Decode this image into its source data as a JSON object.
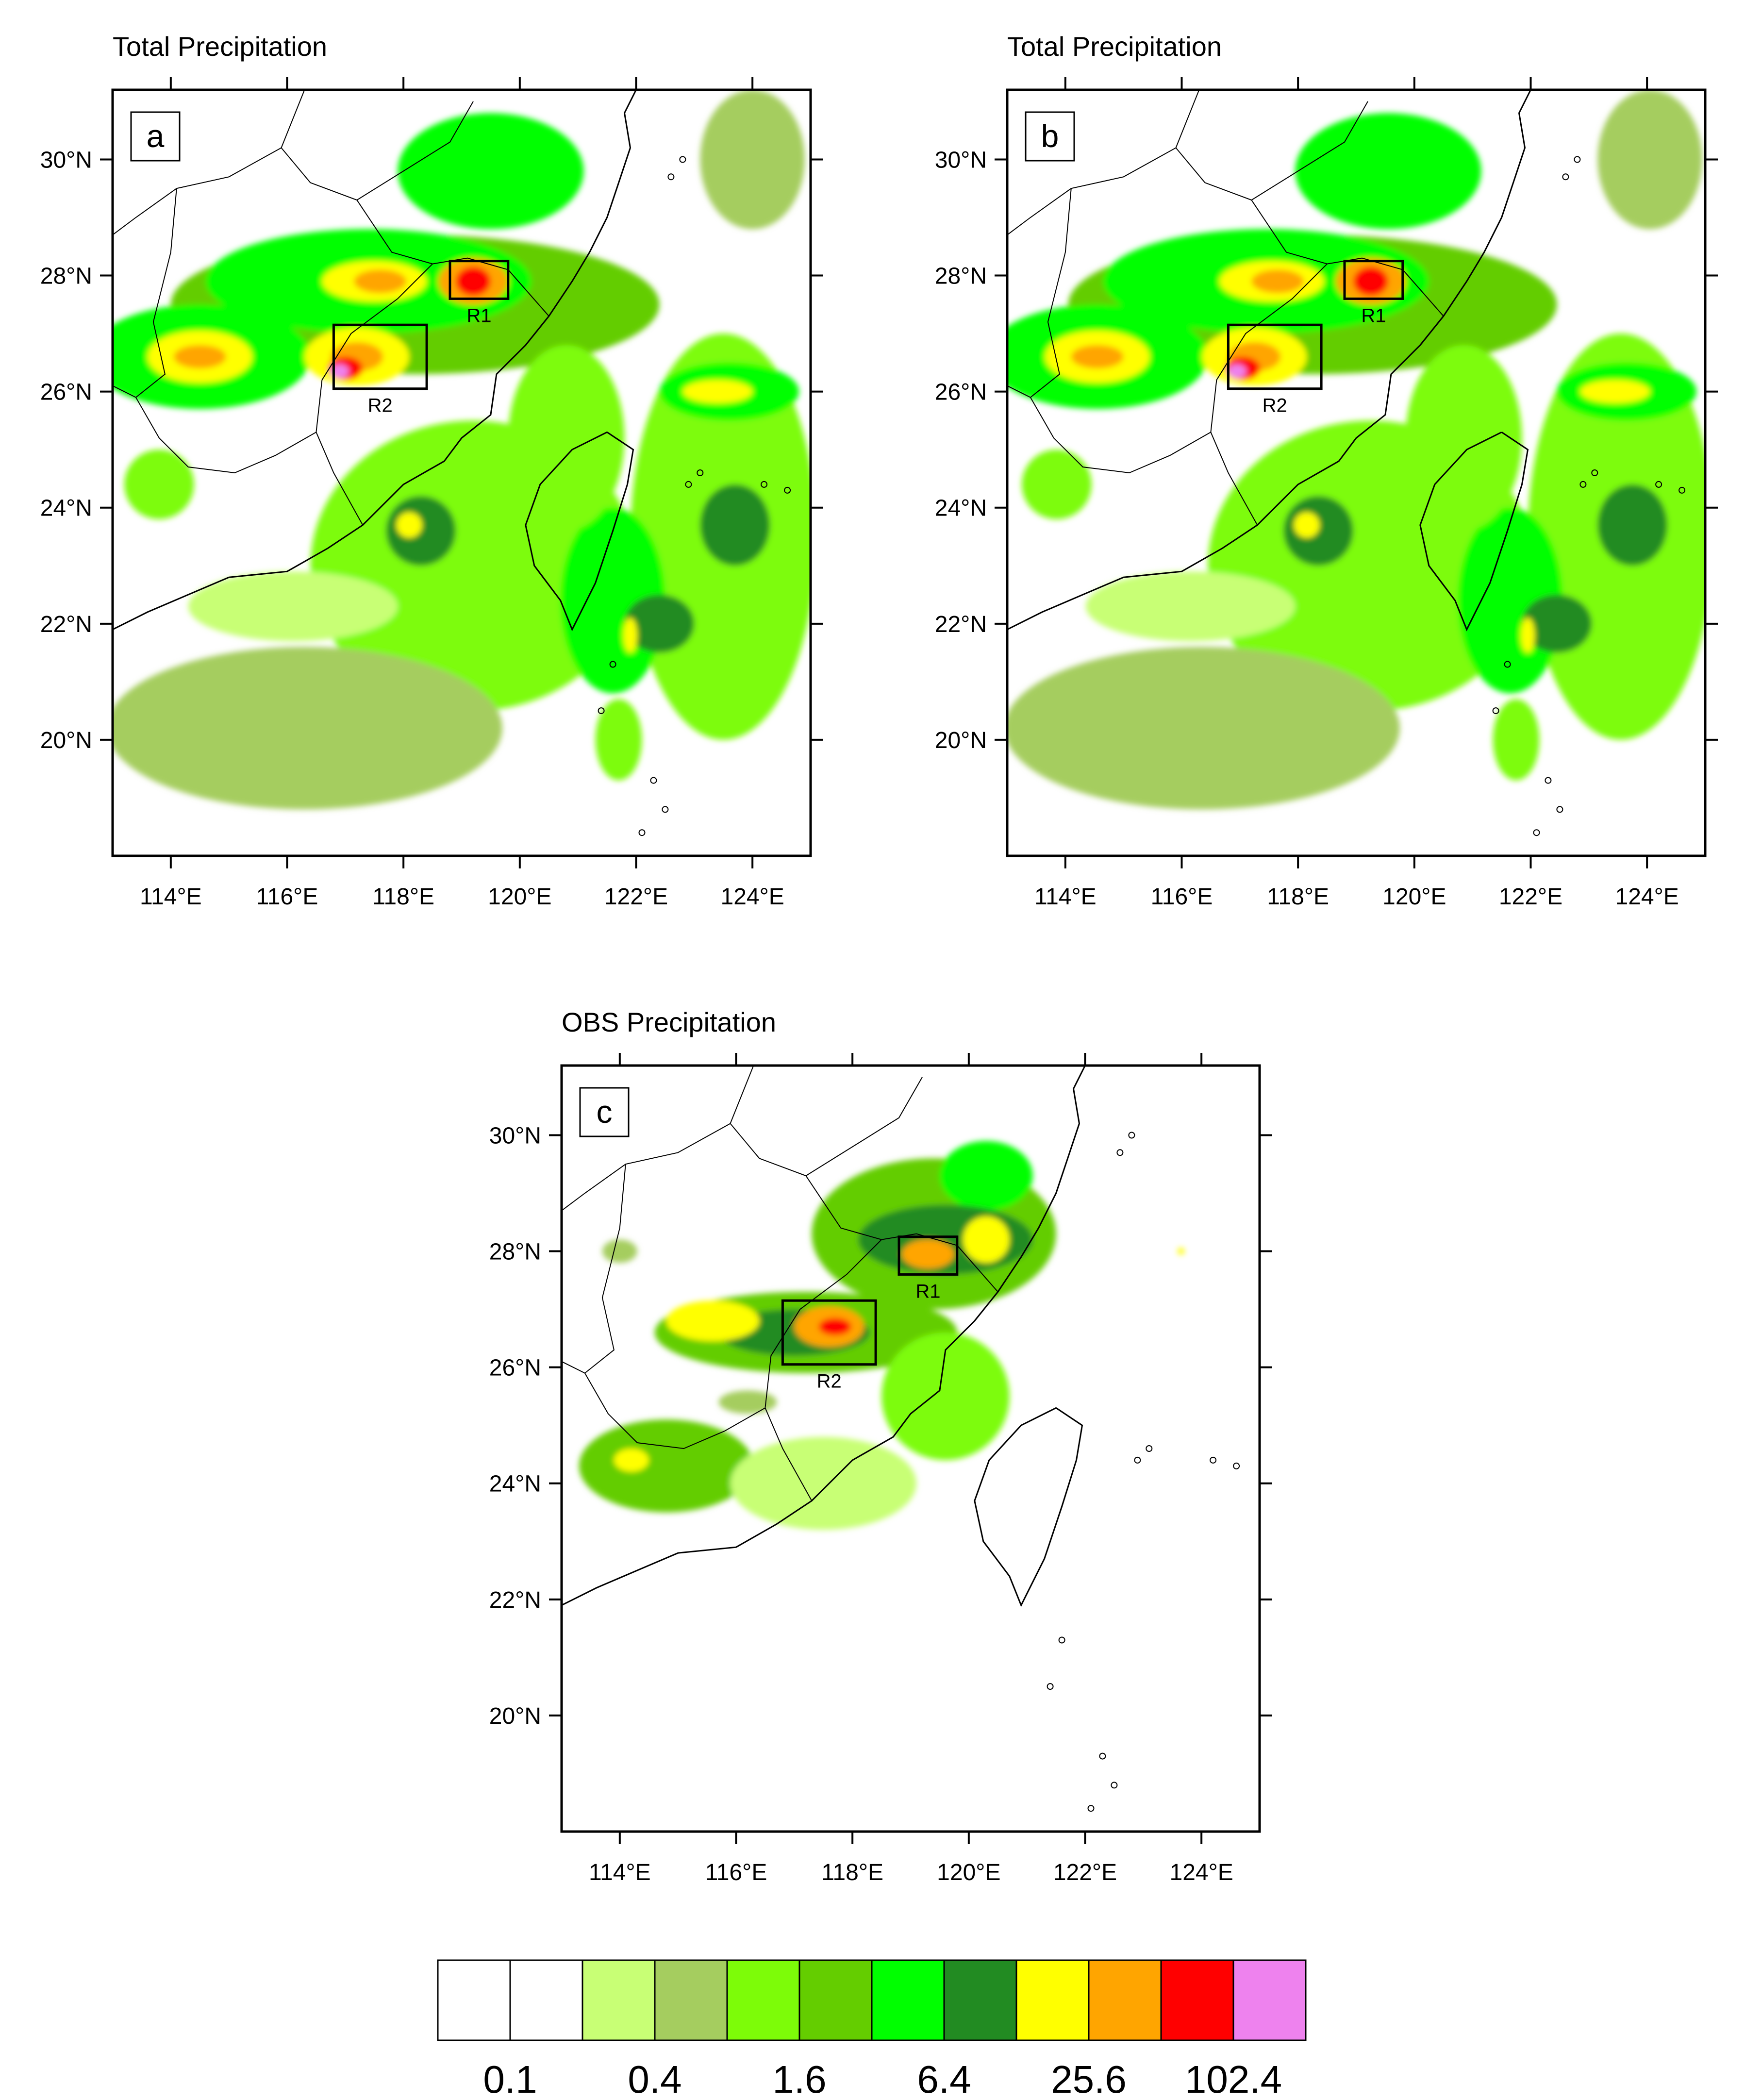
{
  "panels": [
    {
      "id": "a",
      "title": "Total Precipitation",
      "label": "a"
    },
    {
      "id": "b",
      "title": "Total Precipitation",
      "label": "b"
    },
    {
      "id": "c",
      "title": "OBS Precipitation",
      "label": "c"
    }
  ],
  "axes": {
    "lon_ticks": [
      "114°E",
      "116°E",
      "118°E",
      "120°E",
      "122°E",
      "124°E"
    ],
    "lon_values": [
      114,
      116,
      118,
      120,
      122,
      124
    ],
    "lat_ticks": [
      "30°N",
      "28°N",
      "26°N",
      "24°N",
      "22°N",
      "20°N"
    ],
    "lat_values": [
      30,
      28,
      26,
      24,
      22,
      20
    ],
    "lon_range": [
      113,
      125
    ],
    "lat_range": [
      18,
      31.2
    ]
  },
  "regions": [
    {
      "name": "R1",
      "lon": [
        118.8,
        119.8
      ],
      "lat": [
        27.6,
        28.25
      ]
    },
    {
      "name": "R2",
      "lon": [
        116.8,
        118.4
      ],
      "lat": [
        26.05,
        27.15
      ]
    }
  ],
  "colorbar": {
    "colors": [
      "#ffffff",
      "#ffffff",
      "#c8ff75",
      "#a5cd5f",
      "#7dfc08",
      "#64cd00",
      "#00ff00",
      "#228b22",
      "#ffff00",
      "#ffa500",
      "#ff0000",
      "#ee82ee"
    ],
    "labels": [
      "0.1",
      "0.4",
      "1.6",
      "6.4",
      "25.6",
      "102.4"
    ]
  }
}
